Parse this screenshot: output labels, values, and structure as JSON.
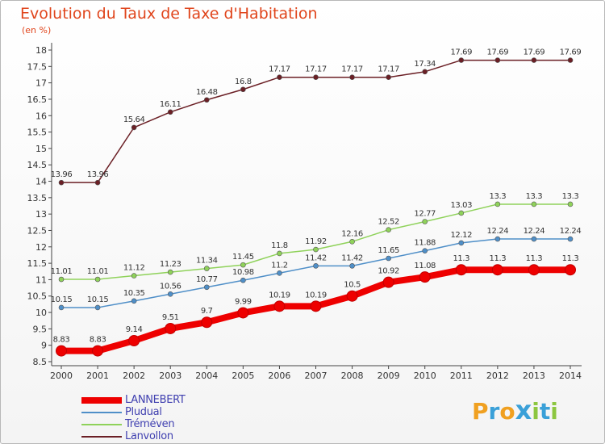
{
  "header": {
    "title": "Evolution du Taux de Taxe d'Habitation",
    "subtitle": "(en %)"
  },
  "chart_data": {
    "type": "line",
    "title": "Evolution du Taux de Taxe d'Habitation",
    "ylabel": "(en %)",
    "xlabel": "",
    "x": [
      "2000",
      "2001",
      "2002",
      "2003",
      "2004",
      "2005",
      "2006",
      "2007",
      "2008",
      "2009",
      "2010",
      "2011",
      "2012",
      "2013",
      "2014"
    ],
    "ylim": [
      8.5,
      18
    ],
    "yticks": [
      "8.5",
      "9",
      "9.5",
      "10",
      "10.5",
      "11",
      "11.5",
      "12",
      "12.5",
      "13",
      "13.5",
      "14",
      "14.5",
      "15",
      "15.5",
      "16",
      "16.5",
      "17",
      "17.5",
      "18"
    ],
    "grid": false,
    "legend_position": "bottom-left",
    "series": [
      {
        "name": "LANNEBERT",
        "color": "#ee0000",
        "values": [
          8.83,
          8.83,
          9.14,
          9.51,
          9.7,
          9.99,
          10.19,
          10.19,
          10.5,
          10.92,
          11.08,
          11.3,
          11.3,
          11.3,
          11.3
        ],
        "labels": [
          "8.83",
          "8.83",
          "9.14",
          "9.51",
          "9.7",
          "9.99",
          "10.19",
          "10.19",
          "10.5",
          "10.92",
          "11.08",
          "11.3",
          "11.3",
          "11.3",
          "11.3"
        ]
      },
      {
        "name": "Pludual",
        "color": "#4f8fc8",
        "values": [
          10.15,
          10.15,
          10.35,
          10.56,
          10.77,
          10.98,
          11.2,
          11.42,
          11.42,
          11.65,
          11.88,
          12.12,
          12.24,
          12.24,
          12.24
        ],
        "labels": [
          "10.15",
          "10.15",
          "10.35",
          "10.56",
          "10.77",
          "10.98",
          "11.2",
          "11.42",
          "11.42",
          "11.65",
          "11.88",
          "12.12",
          "12.24",
          "12.24",
          "12.24"
        ]
      },
      {
        "name": "Tréméven",
        "color": "#8fd25a",
        "values": [
          11.01,
          11.01,
          11.12,
          11.23,
          11.34,
          11.45,
          11.8,
          11.92,
          12.16,
          12.52,
          12.77,
          13.03,
          13.3,
          13.3,
          13.3
        ],
        "labels": [
          "11.01",
          "11.01",
          "11.12",
          "11.23",
          "11.34",
          "11.45",
          "11.8",
          "11.92",
          "12.16",
          "12.52",
          "12.77",
          "13.03",
          "13.3",
          "13.3",
          "13.3"
        ]
      },
      {
        "name": "Lanvollon",
        "color": "#6b1f25",
        "values": [
          13.96,
          13.96,
          15.64,
          16.11,
          16.48,
          16.8,
          17.17,
          17.17,
          17.17,
          17.17,
          17.34,
          17.69,
          17.69,
          17.69,
          17.69
        ],
        "labels": [
          "13.96",
          "13.96",
          "15.64",
          "16.11",
          "16.48",
          "16.8",
          "17.17",
          "17.17",
          "17.17",
          "17.17",
          "17.34",
          "17.69",
          "17.69",
          "17.69",
          "17.69"
        ]
      }
    ]
  },
  "logo": {
    "letters": [
      "P",
      "r",
      "o",
      "x",
      "i",
      "t",
      "i"
    ],
    "colors": [
      "#f0a020",
      "#3aa0d8",
      "#f0a020",
      "#3aa0d8",
      "#8cc63f",
      "#3aa0d8",
      "#8cc63f"
    ]
  }
}
